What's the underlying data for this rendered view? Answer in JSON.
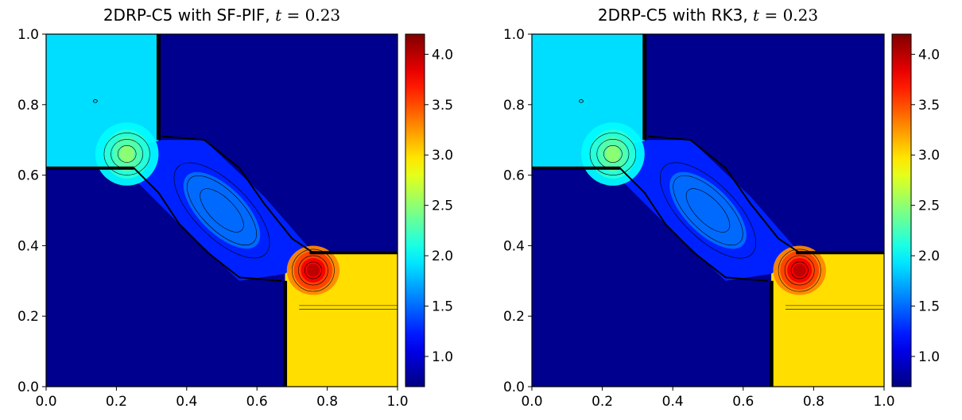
{
  "chart_data": [
    {
      "type": "heatmap",
      "title_prefix": "2DRP-C5 with SF-PIF, ",
      "title_math_var": "t",
      "title_math_eq": " = 0.23",
      "xlim": [
        0.0,
        1.0
      ],
      "ylim": [
        0.0,
        1.0
      ],
      "x_ticks": [
        "0.0",
        "0.2",
        "0.4",
        "0.6",
        "0.8",
        "1.0"
      ],
      "y_ticks": [
        "0.0",
        "0.2",
        "0.4",
        "0.6",
        "0.8",
        "1.0"
      ],
      "colorbar": {
        "colormap": "jet",
        "range": [
          0.7,
          4.2
        ],
        "ticks": [
          "1.0",
          "1.5",
          "2.0",
          "2.5",
          "3.0",
          "3.5",
          "4.0"
        ]
      },
      "regions": [
        {
          "name": "upper-left",
          "x": [
            0.0,
            0.32
          ],
          "y": [
            0.62,
            1.0
          ],
          "value": 1.9
        },
        {
          "name": "upper-right",
          "x": [
            0.32,
            1.0
          ],
          "y": [
            0.38,
            1.0
          ],
          "value": 0.75
        },
        {
          "name": "lower-left",
          "x": [
            0.0,
            0.68
          ],
          "y": [
            0.0,
            0.62
          ],
          "value": 0.75
        },
        {
          "name": "lower-right",
          "x": [
            0.68,
            1.0
          ],
          "y": [
            0.0,
            0.38
          ],
          "value": 3.0
        },
        {
          "name": "central-jet",
          "center": [
            0.5,
            0.5
          ],
          "value": 1.5
        },
        {
          "name": "upper-vortex",
          "center": [
            0.22,
            0.66
          ],
          "value": 2.3
        },
        {
          "name": "lower-vortex",
          "center": [
            0.76,
            0.33
          ],
          "value": 3.8
        }
      ]
    },
    {
      "type": "heatmap",
      "title_prefix": "2DRP-C5 with RK3, ",
      "title_math_var": "t",
      "title_math_eq": " = 0.23",
      "xlim": [
        0.0,
        1.0
      ],
      "ylim": [
        0.0,
        1.0
      ],
      "x_ticks": [
        "0.0",
        "0.2",
        "0.4",
        "0.6",
        "0.8",
        "1.0"
      ],
      "y_ticks": [
        "0.0",
        "0.2",
        "0.4",
        "0.6",
        "0.8",
        "1.0"
      ],
      "colorbar": {
        "colormap": "jet",
        "range": [
          0.7,
          4.2
        ],
        "ticks": [
          "1.0",
          "1.5",
          "2.0",
          "2.5",
          "3.0",
          "3.5",
          "4.0"
        ]
      },
      "regions": [
        {
          "name": "upper-left",
          "x": [
            0.0,
            0.32
          ],
          "y": [
            0.62,
            1.0
          ],
          "value": 1.9
        },
        {
          "name": "upper-right",
          "x": [
            0.32,
            1.0
          ],
          "y": [
            0.38,
            1.0
          ],
          "value": 0.75
        },
        {
          "name": "lower-left",
          "x": [
            0.0,
            0.68
          ],
          "y": [
            0.0,
            0.62
          ],
          "value": 0.75
        },
        {
          "name": "lower-right",
          "x": [
            0.68,
            1.0
          ],
          "y": [
            0.0,
            0.38
          ],
          "value": 3.0
        },
        {
          "name": "central-jet",
          "center": [
            0.5,
            0.5
          ],
          "value": 1.5
        },
        {
          "name": "upper-vortex",
          "center": [
            0.22,
            0.66
          ],
          "value": 2.3
        },
        {
          "name": "lower-vortex",
          "center": [
            0.76,
            0.33
          ],
          "value": 3.8
        }
      ]
    }
  ]
}
